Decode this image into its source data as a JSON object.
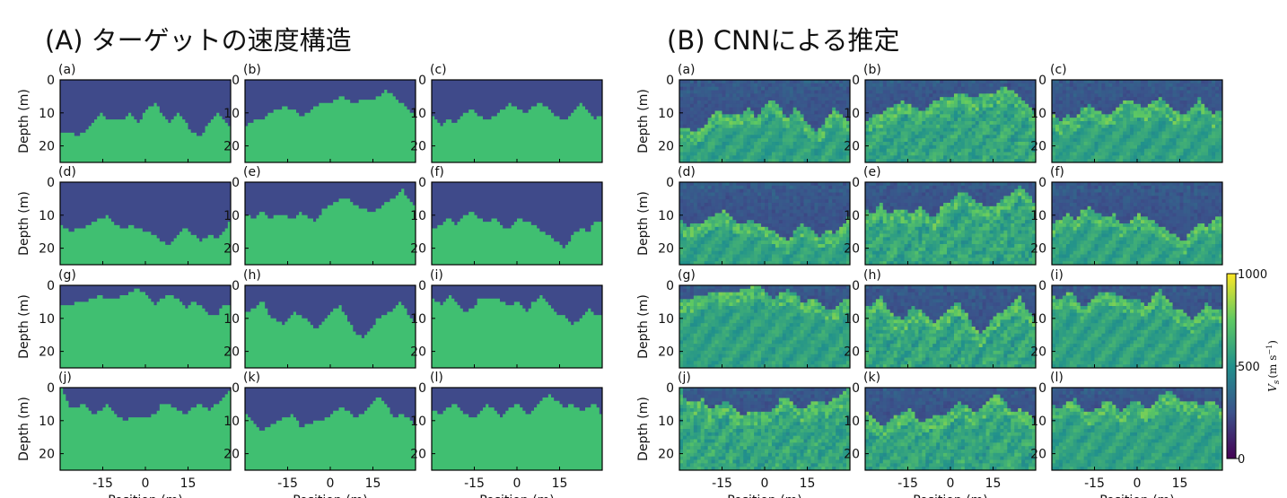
{
  "titles": {
    "a": "(A) ターゲットの速度構造",
    "b": "(B) CNNによる推定"
  },
  "axes": {
    "ylabel": "Depth (m)",
    "xlabel": "Position (m)",
    "yticks": [
      "0",
      "10",
      "20"
    ],
    "xticks": [
      "-15",
      "0",
      "15"
    ]
  },
  "panel_labels": [
    "(a)",
    "(b)",
    "(c)",
    "(d)",
    "(e)",
    "(f)",
    "(g)",
    "(h)",
    "(i)",
    "(j)",
    "(k)",
    "(l)"
  ],
  "colorbar": {
    "label": "V_s (m s^-1)",
    "label_main": "V",
    "label_sub": "s",
    "label_unit": "(m s",
    "label_exp": "−1",
    "label_close": ")",
    "ticks": [
      "1000",
      "500",
      "0"
    ],
    "stops": [
      "#440154",
      "#3b528b",
      "#21918c",
      "#5ec962",
      "#fde725"
    ]
  },
  "chart_data": {
    "type": "heatmap",
    "description_units": "interface depth (m) between low-velocity top layer and high-velocity lower layer, sampled across position -30..30 m",
    "x_range": [
      -30,
      30
    ],
    "y_range": [
      0,
      25
    ],
    "colors": {
      "top_layer": "#3f4a8a",
      "bottom_layer": "#40bf71"
    },
    "target_interfaces": [
      [
        16,
        16,
        17,
        16,
        13,
        10,
        12,
        12,
        12,
        10,
        13,
        9,
        7,
        10,
        13,
        10,
        13,
        16,
        17,
        13,
        10,
        12,
        15
      ],
      [
        14,
        12,
        12,
        10,
        9,
        8,
        9,
        11,
        10,
        8,
        7,
        7,
        5,
        6,
        7,
        6,
        6,
        5,
        3,
        5,
        7,
        9,
        11
      ],
      [
        11,
        14,
        12,
        13,
        10,
        9,
        11,
        12,
        11,
        9,
        7,
        9,
        10,
        8,
        7,
        9,
        11,
        12,
        10,
        7,
        10,
        12,
        10
      ],
      [
        13,
        15,
        14,
        14,
        12,
        11,
        10,
        13,
        14,
        13,
        14,
        15,
        16,
        18,
        19,
        16,
        14,
        16,
        18,
        16,
        17,
        15,
        11
      ],
      [
        10,
        11,
        8,
        11,
        10,
        10,
        11,
        9,
        11,
        12,
        8,
        7,
        5,
        5,
        7,
        8,
        9,
        8,
        6,
        5,
        2,
        5,
        8
      ],
      [
        14,
        13,
        11,
        13,
        10,
        9,
        11,
        12,
        11,
        14,
        14,
        11,
        12,
        13,
        15,
        16,
        18,
        20,
        16,
        14,
        15,
        12,
        12
      ],
      [
        6,
        6,
        5,
        5,
        4,
        3,
        4,
        4,
        3,
        2,
        1,
        3,
        6,
        4,
        3,
        4,
        7,
        5,
        6,
        9,
        9,
        6,
        6
      ],
      [
        8,
        7,
        4,
        9,
        11,
        12,
        8,
        9,
        11,
        13,
        11,
        8,
        6,
        10,
        14,
        16,
        13,
        10,
        9,
        7,
        5,
        9,
        12
      ],
      [
        4,
        6,
        3,
        5,
        8,
        7,
        4,
        4,
        4,
        5,
        6,
        5,
        8,
        5,
        3,
        6,
        9,
        9,
        12,
        10,
        7,
        9,
        9
      ],
      [
        0,
        6,
        6,
        5,
        8,
        7,
        5,
        8,
        10,
        9,
        9,
        9,
        8,
        5,
        5,
        7,
        8,
        6,
        5,
        7,
        5,
        3,
        0
      ],
      [
        8,
        11,
        13,
        12,
        10,
        9,
        8,
        12,
        11,
        10,
        10,
        8,
        6,
        7,
        9,
        8,
        5,
        3,
        5,
        9,
        8,
        9,
        12
      ],
      [
        7,
        8,
        6,
        5,
        8,
        9,
        8,
        5,
        7,
        9,
        6,
        5,
        8,
        7,
        4,
        2,
        4,
        6,
        5,
        7,
        6,
        5,
        9
      ]
    ]
  }
}
